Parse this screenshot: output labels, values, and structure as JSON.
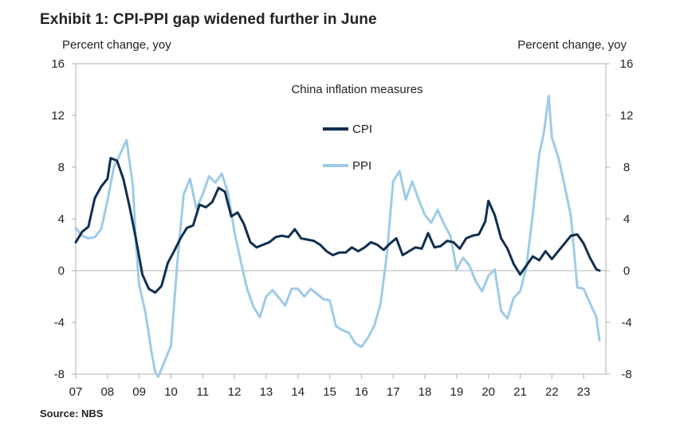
{
  "header": {
    "title": "Exhibit 1: CPI-PPI gap widened further in June",
    "left_axis_title": "Percent change, yoy",
    "right_axis_title": "Percent change, yoy"
  },
  "footer": {
    "source": "Source: NBS"
  },
  "colors": {
    "cpi": "#0f2f4f",
    "ppi": "#9ecbe6",
    "axis": "#b0b0b0",
    "text": "#222222"
  },
  "chart_data": {
    "type": "line",
    "title": "China inflation measures",
    "xlabel": "",
    "ylabel": "Percent change, yoy",
    "y2label": "Percent change, yoy",
    "ylim": [
      -8,
      16
    ],
    "yticks": [
      -8,
      -4,
      0,
      4,
      8,
      12,
      16
    ],
    "xlim": [
      2007.0,
      2023.7
    ],
    "xticks": [
      {
        "value": 2007.0,
        "label": "07"
      },
      {
        "value": 2008.0,
        "label": "08"
      },
      {
        "value": 2009.0,
        "label": "09"
      },
      {
        "value": 2010.0,
        "label": "10"
      },
      {
        "value": 2011.0,
        "label": "11"
      },
      {
        "value": 2012.0,
        "label": "12"
      },
      {
        "value": 2013.0,
        "label": "13"
      },
      {
        "value": 2014.0,
        "label": "14"
      },
      {
        "value": 2015.0,
        "label": "15"
      },
      {
        "value": 2016.0,
        "label": "16"
      },
      {
        "value": 2017.0,
        "label": "17"
      },
      {
        "value": 2018.0,
        "label": "18"
      },
      {
        "value": 2019.0,
        "label": "19"
      },
      {
        "value": 2020.0,
        "label": "20"
      },
      {
        "value": 2021.0,
        "label": "21"
      },
      {
        "value": 2022.0,
        "label": "22"
      },
      {
        "value": 2023.0,
        "label": "23"
      }
    ],
    "legend": {
      "position": "top-center",
      "entries": [
        "CPI",
        "PPI"
      ]
    },
    "series": [
      {
        "name": "CPI",
        "x": [
          2007.0,
          2007.2,
          2007.4,
          2007.6,
          2007.8,
          2008.0,
          2008.1,
          2008.3,
          2008.5,
          2008.7,
          2008.9,
          2009.1,
          2009.3,
          2009.5,
          2009.7,
          2009.9,
          2010.1,
          2010.3,
          2010.5,
          2010.7,
          2010.9,
          2011.1,
          2011.3,
          2011.5,
          2011.7,
          2011.9,
          2012.1,
          2012.3,
          2012.5,
          2012.7,
          2012.9,
          2013.1,
          2013.3,
          2013.5,
          2013.7,
          2013.9,
          2014.1,
          2014.3,
          2014.5,
          2014.7,
          2014.9,
          2015.1,
          2015.3,
          2015.5,
          2015.7,
          2015.9,
          2016.1,
          2016.3,
          2016.5,
          2016.7,
          2016.9,
          2017.1,
          2017.3,
          2017.5,
          2017.7,
          2017.9,
          2018.1,
          2018.3,
          2018.5,
          2018.7,
          2018.9,
          2019.1,
          2019.3,
          2019.5,
          2019.7,
          2019.9,
          2020.0,
          2020.2,
          2020.4,
          2020.6,
          2020.8,
          2021.0,
          2021.2,
          2021.4,
          2021.6,
          2021.8,
          2022.0,
          2022.2,
          2022.4,
          2022.6,
          2022.8,
          2023.0,
          2023.2,
          2023.4,
          2023.5
        ],
        "values": [
          2.2,
          3.0,
          3.4,
          5.6,
          6.5,
          7.1,
          8.7,
          8.5,
          7.1,
          4.9,
          2.4,
          -0.3,
          -1.4,
          -1.7,
          -1.2,
          0.6,
          1.5,
          2.5,
          3.3,
          3.5,
          5.1,
          4.9,
          5.3,
          6.4,
          6.1,
          4.2,
          4.5,
          3.6,
          2.2,
          1.8,
          2.0,
          2.2,
          2.6,
          2.7,
          2.6,
          3.2,
          2.5,
          2.4,
          2.3,
          2.0,
          1.5,
          1.2,
          1.4,
          1.4,
          1.8,
          1.5,
          1.8,
          2.2,
          2.0,
          1.6,
          2.1,
          2.5,
          1.2,
          1.5,
          1.8,
          1.7,
          2.9,
          1.8,
          1.9,
          2.3,
          2.2,
          1.7,
          2.5,
          2.7,
          2.8,
          3.8,
          5.4,
          4.3,
          2.5,
          1.7,
          0.5,
          -0.3,
          0.4,
          1.1,
          0.8,
          1.5,
          0.9,
          1.5,
          2.1,
          2.7,
          2.8,
          2.1,
          1.0,
          0.1,
          0.0
        ]
      },
      {
        "name": "PPI",
        "x": [
          2007.0,
          2007.2,
          2007.4,
          2007.6,
          2007.8,
          2008.0,
          2008.2,
          2008.4,
          2008.6,
          2008.8,
          2008.9,
          2009.0,
          2009.2,
          2009.4,
          2009.5,
          2009.6,
          2009.8,
          2010.0,
          2010.2,
          2010.4,
          2010.6,
          2010.8,
          2011.0,
          2011.2,
          2011.4,
          2011.6,
          2011.8,
          2012.0,
          2012.2,
          2012.4,
          2012.6,
          2012.8,
          2013.0,
          2013.2,
          2013.4,
          2013.6,
          2013.8,
          2014.0,
          2014.2,
          2014.4,
          2014.6,
          2014.8,
          2015.0,
          2015.2,
          2015.4,
          2015.6,
          2015.8,
          2016.0,
          2016.2,
          2016.4,
          2016.6,
          2016.8,
          2017.0,
          2017.2,
          2017.4,
          2017.6,
          2017.8,
          2018.0,
          2018.2,
          2018.4,
          2018.6,
          2018.8,
          2019.0,
          2019.2,
          2019.4,
          2019.6,
          2019.8,
          2020.0,
          2020.2,
          2020.4,
          2020.6,
          2020.8,
          2021.0,
          2021.2,
          2021.4,
          2021.6,
          2021.75,
          2021.9,
          2022.0,
          2022.2,
          2022.4,
          2022.6,
          2022.8,
          2023.0,
          2023.2,
          2023.4,
          2023.5
        ],
        "values": [
          3.3,
          2.7,
          2.5,
          2.6,
          3.2,
          5.4,
          8.0,
          9.0,
          10.1,
          6.6,
          2.0,
          -1.1,
          -3.3,
          -6.5,
          -7.8,
          -8.2,
          -7.0,
          -5.8,
          0.6,
          5.9,
          7.1,
          4.8,
          5.9,
          7.3,
          6.8,
          7.5,
          6.0,
          3.0,
          0.7,
          -1.4,
          -2.8,
          -3.6,
          -2.0,
          -1.5,
          -2.1,
          -2.7,
          -1.4,
          -1.4,
          -2.0,
          -1.4,
          -1.8,
          -2.2,
          -2.3,
          -4.3,
          -4.6,
          -4.8,
          -5.6,
          -5.9,
          -5.2,
          -4.3,
          -2.6,
          1.2,
          6.9,
          7.7,
          5.5,
          6.9,
          5.5,
          4.3,
          3.7,
          4.7,
          3.6,
          2.7,
          0.1,
          1.0,
          0.4,
          -0.8,
          -1.6,
          -0.4,
          0.1,
          -3.1,
          -3.7,
          -2.1,
          -1.6,
          0.3,
          4.4,
          9.0,
          10.7,
          13.5,
          10.3,
          8.8,
          6.6,
          4.2,
          -1.3,
          -1.4,
          -2.5,
          -3.6,
          -5.4
        ]
      }
    ]
  }
}
